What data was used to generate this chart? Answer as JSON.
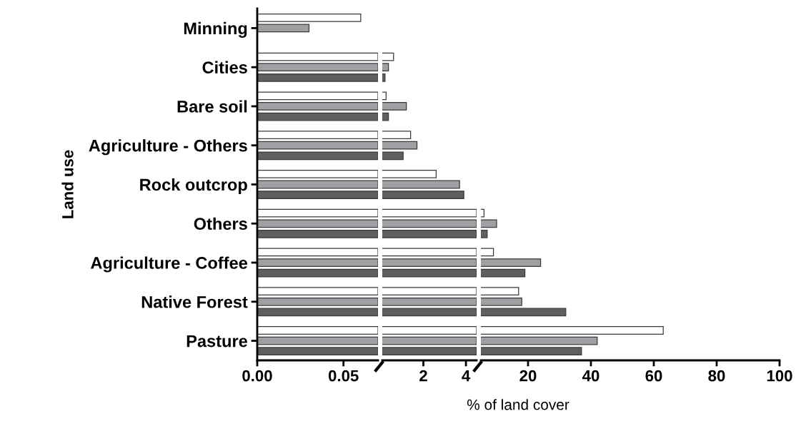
{
  "chart_data": [
    {
      "type": "bar",
      "orientation": "horizontal",
      "ylabel": "Land use",
      "grid": false,
      "legend": false,
      "categories": [
        "Minning",
        "Cities",
        "Bare soil",
        "Agriculture - Others",
        "Rock outcrop",
        "Others",
        "Agriculture - Coffee",
        "Native Forest",
        "Pasture"
      ],
      "series": [
        {
          "color": "#ffffff",
          "values": [
            0.06,
            0.07,
            0.07,
            0.07,
            0.07,
            0.07,
            0.07,
            0.07,
            0.07
          ]
        },
        {
          "color": "#a0a0a4",
          "values": [
            0.03,
            0.07,
            0.07,
            0.07,
            0.07,
            0.07,
            0.07,
            0.07,
            0.07
          ]
        },
        {
          "color": "#5f5f5f",
          "values": [
            null,
            0.07,
            0.07,
            0.07,
            0.07,
            0.07,
            0.07,
            0.07,
            0.07
          ]
        }
      ],
      "xlim": [
        0,
        0.07
      ],
      "xticks": [
        {
          "value": 0,
          "label": "0.00"
        },
        {
          "value": 0.05,
          "label": "0.05"
        }
      ]
    },
    {
      "type": "bar",
      "orientation": "horizontal",
      "grid": false,
      "legend": false,
      "categories": [
        null,
        null,
        null,
        null,
        null,
        null,
        null,
        null,
        null
      ],
      "series": [
        {
          "color": "#ffffff",
          "values": [
            null,
            0.6,
            0.25,
            1.4,
            2.6,
            4.5,
            4.5,
            4.5,
            4.5
          ]
        },
        {
          "color": "#a0a0a4",
          "values": [
            null,
            0.36,
            1.2,
            1.7,
            3.7,
            4.5,
            4.5,
            4.5,
            4.5
          ]
        },
        {
          "color": "#5f5f5f",
          "values": [
            null,
            0.2,
            0.36,
            1.05,
            3.9,
            4.5,
            4.5,
            4.5,
            4.5
          ]
        }
      ],
      "xlim": [
        0.07,
        4.5
      ],
      "xticks": [
        2,
        4
      ]
    },
    {
      "type": "bar",
      "orientation": "horizontal",
      "xlabel": "% of land cover",
      "grid": false,
      "legend": false,
      "categories": [
        null,
        null,
        null,
        null,
        null,
        null,
        null,
        null,
        null
      ],
      "series": [
        {
          "color": "#ffffff",
          "values": [
            null,
            null,
            null,
            null,
            null,
            6,
            9,
            17,
            63
          ]
        },
        {
          "color": "#a0a0a4",
          "values": [
            null,
            null,
            null,
            null,
            null,
            10,
            24,
            18,
            42
          ]
        },
        {
          "color": "#5f5f5f",
          "values": [
            null,
            null,
            null,
            null,
            null,
            7,
            19,
            32,
            37
          ]
        }
      ],
      "xlim": [
        5,
        100
      ],
      "xticks": [
        20,
        40,
        60,
        80,
        100
      ]
    }
  ]
}
